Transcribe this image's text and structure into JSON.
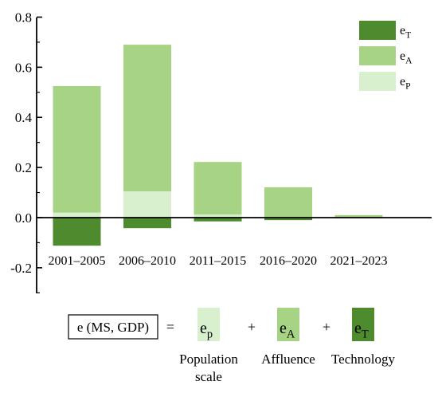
{
  "chart_data": {
    "type": "bar",
    "stacked": true,
    "categories": [
      "2001–2005",
      "2006–2010",
      "2011–2015",
      "2016–2020",
      "2021–2023"
    ],
    "series": [
      {
        "name": "e_P",
        "legend_base": "e",
        "legend_sub": "P",
        "color": "#d9f0cf",
        "values": [
          0.02,
          0.105,
          0.012,
          0.003,
          0.001
        ]
      },
      {
        "name": "e_A",
        "legend_base": "e",
        "legend_sub": "A",
        "color": "#a6d384",
        "values": [
          0.505,
          0.585,
          0.21,
          0.118,
          0.009
        ]
      },
      {
        "name": "e_T",
        "legend_base": "e",
        "legend_sub": "T",
        "color": "#4e8a2e",
        "values": [
          -0.112,
          -0.042,
          -0.015,
          -0.01,
          -0.002
        ]
      }
    ],
    "ylim": [
      -0.3,
      0.8
    ],
    "yticks": [
      "-0.2",
      "0.0",
      "0.2",
      "0.4",
      "0.6",
      "0.8"
    ],
    "ytick_values": [
      -0.2,
      0.0,
      0.2,
      0.4,
      0.6,
      0.8
    ],
    "legend_position": "top-right",
    "grid": false
  },
  "equation": {
    "lhs": "e (MS, GDP)",
    "equals": "=",
    "plus": "+",
    "terms": [
      {
        "base": "e",
        "sub": "p",
        "label_lines": [
          "Population",
          "scale"
        ],
        "color": "#d9f0cf"
      },
      {
        "base": "e",
        "sub": "A",
        "label_lines": [
          "Affluence"
        ],
        "color": "#a6d384"
      },
      {
        "base": "e",
        "sub": "T",
        "label_lines": [
          "Technology"
        ],
        "color": "#4e8a2e"
      }
    ]
  }
}
